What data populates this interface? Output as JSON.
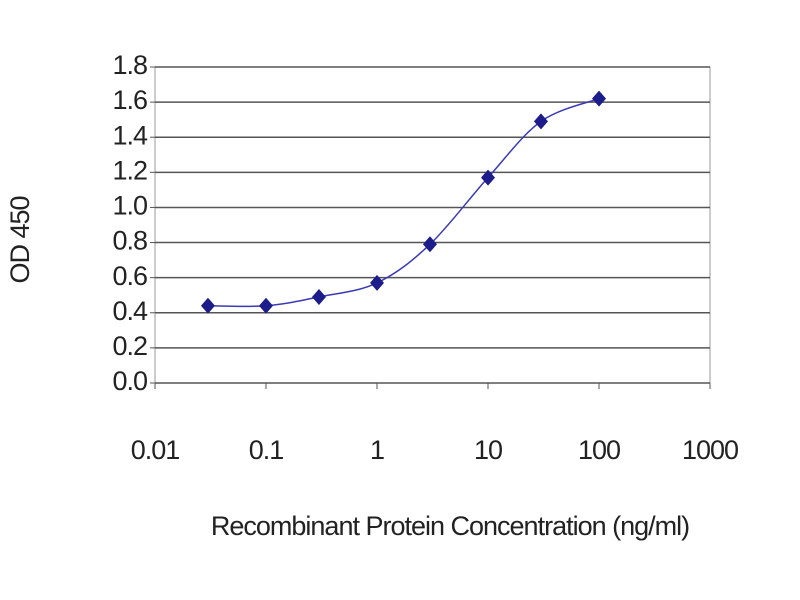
{
  "chart_data": {
    "type": "line",
    "x_label": "Recombinant Protein Concentration (ng/ml)",
    "y_label": "OD 450",
    "x": [
      0.03,
      0.1,
      0.3,
      1,
      3,
      10,
      30,
      100
    ],
    "series": [
      {
        "color": "#1c1c8a",
        "values": [
          0.44,
          0.44,
          0.49,
          0.57,
          0.79,
          1.17,
          1.49,
          1.62
        ]
      }
    ],
    "xscale": "log",
    "xlim": [
      0.01,
      1000
    ],
    "xticks": [
      0.01,
      0.1,
      1,
      10,
      100,
      1000
    ],
    "ylim": [
      0,
      1.8
    ],
    "yticks": [
      {
        "value": 0,
        "label": "0.0"
      },
      0.2,
      0.4,
      0.6,
      0.8,
      {
        "value": 1,
        "label": "1.0"
      },
      1.2,
      1.4,
      1.6,
      1.8
    ],
    "grid": true
  }
}
